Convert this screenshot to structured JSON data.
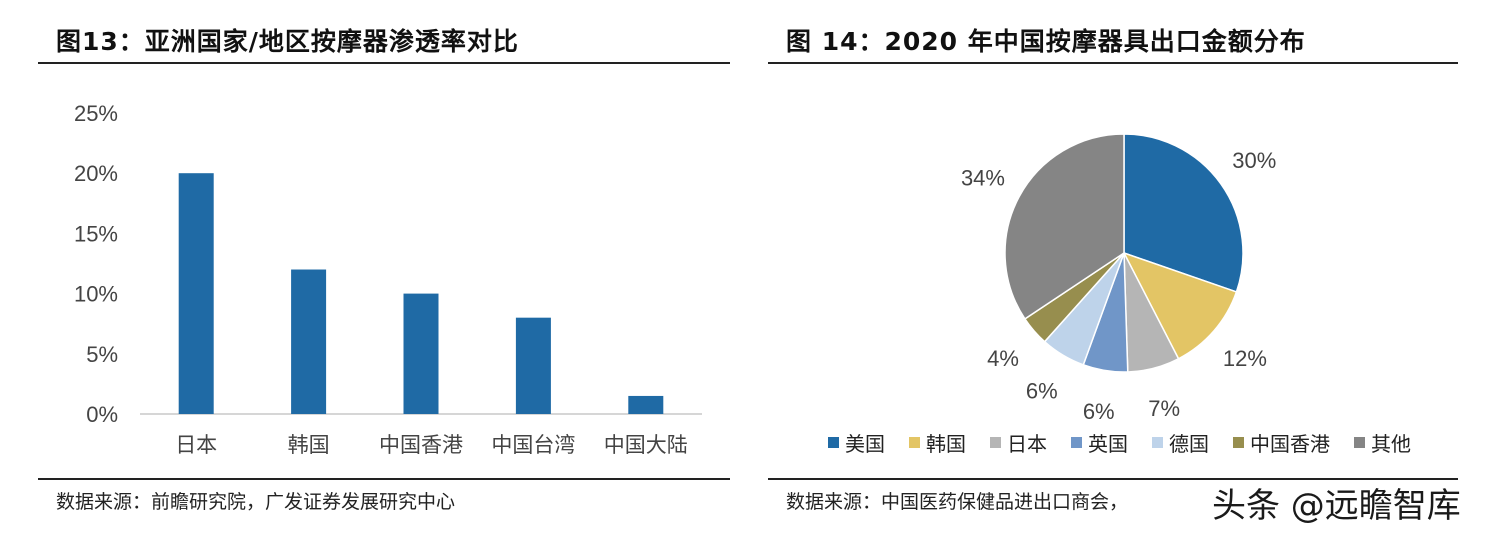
{
  "left": {
    "title": "图13：亚洲国家/地区按摩器渗透率对比",
    "source": "数据来源：前瞻研究院，广发证券发展研究中心"
  },
  "right": {
    "title": "图 14：2020 年中国按摩器具出口金额分布",
    "source": "数据来源：中国医药保健品进出口商会，"
  },
  "watermark": "头条 @远瞻智库",
  "chart_data": [
    {
      "type": "bar",
      "title": "亚洲国家/地区按摩器渗透率对比",
      "categories": [
        "日本",
        "韩国",
        "中国香港",
        "中国台湾",
        "中国大陆"
      ],
      "values": [
        20,
        12,
        10,
        8,
        1.5
      ],
      "ylim": [
        0,
        25
      ],
      "yticks": [
        "0%",
        "5%",
        "10%",
        "15%",
        "20%",
        "25%"
      ],
      "ytick_values": [
        0,
        5,
        10,
        15,
        20,
        25
      ],
      "xlabel": "",
      "ylabel": "",
      "grid": false,
      "color": "#1f6aa5"
    },
    {
      "type": "pie",
      "title": "2020 年中国按摩器具出口金额分布",
      "labels": [
        "美国",
        "韩国",
        "日本",
        "英国",
        "德国",
        "中国香港",
        "其他"
      ],
      "values": [
        30,
        12,
        7,
        6,
        6,
        4,
        34
      ],
      "value_labels": [
        "30%",
        "12%",
        "7%",
        "6%",
        "6%",
        "4%",
        "34%"
      ],
      "colors": [
        "#1f6aa5",
        "#e3c565",
        "#b5b5b5",
        "#7096c8",
        "#bed3ea",
        "#978e4e",
        "#858585"
      ],
      "legend_position": "bottom"
    }
  ]
}
